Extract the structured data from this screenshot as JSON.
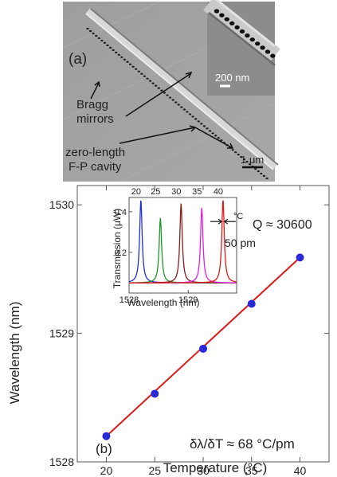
{
  "panel_a": {
    "label": "(a)",
    "scalebar_inset": "200 nm",
    "scalebar_main": "1 μm",
    "annotation_bragg_line1": "Bragg",
    "annotation_bragg_line2": "mirrors",
    "annotation_cavity_line1": "zero-length",
    "annotation_cavity_line2": "F-P cavity"
  },
  "panel_b": {
    "label": "(b)",
    "q_label": "Q ≈ 30600",
    "slope_label": "δλ/δT ≈ 68 °C/pm",
    "inset_fwhm": "50 pm",
    "inset_unit": "°C"
  },
  "colors": {
    "fit_line": "#e01818",
    "marker": "#2a2ad8",
    "inset_peaks": [
      "#1f2fd8",
      "#1a9a2a",
      "#8b1a1a",
      "#e020e0",
      "#e01818"
    ]
  },
  "chart_data": [
    {
      "type": "scatter",
      "xlabel": "Temperature (°C)",
      "ylabel": "Wavelength (nm)",
      "xlim": [
        17,
        43
      ],
      "ylim": [
        1528,
        1530.15
      ],
      "xticks": [
        20,
        25,
        30,
        35,
        40
      ],
      "yticks": [
        1528,
        1529,
        1530
      ],
      "series": [
        {
          "x": [
            20,
            25,
            30,
            35,
            40
          ],
          "y": [
            1528.2,
            1528.53,
            1528.88,
            1529.23,
            1529.59
          ]
        }
      ],
      "fit_line": {
        "x": [
          20,
          40
        ],
        "y": [
          1528.2,
          1529.59
        ]
      },
      "grid": false
    },
    {
      "type": "line",
      "xlabel": "Wavelength (nm)",
      "ylabel": "Transmission (μW)",
      "xlim": [
        1528,
        1529.82
      ],
      "ylim": [
        0,
        0.47
      ],
      "xticks": [
        1528,
        1529
      ],
      "yticks": [
        0.2,
        0.4
      ],
      "peak_labels": [
        "20",
        "25",
        "30",
        "35",
        "40"
      ],
      "series": [
        {
          "center": 1528.2,
          "amplitude": 0.46
        },
        {
          "center": 1528.53,
          "amplitude": 0.37
        },
        {
          "center": 1528.88,
          "amplitude": 0.44
        },
        {
          "center": 1529.23,
          "amplitude": 0.42
        },
        {
          "center": 1529.59,
          "amplitude": 0.46
        }
      ],
      "baseline": 0.05,
      "fwhm": 0.05
    }
  ]
}
